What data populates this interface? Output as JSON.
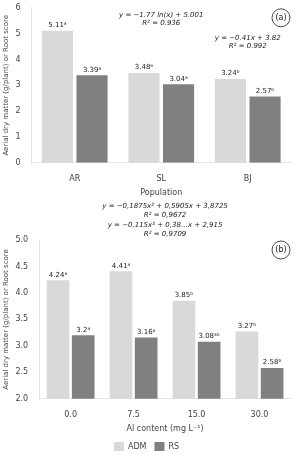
{
  "chart_data": [
    {
      "type": "bar",
      "categories": [
        "AR",
        "SL",
        "BJ"
      ],
      "series": [
        {
          "name": "ADM",
          "color": "#d9d9d9",
          "values": [
            5.11,
            3.48,
            3.24
          ],
          "value_labels": [
            "5.11ᵃ",
            "3.48ᵃ",
            "3.24ᵇ"
          ]
        },
        {
          "name": "RS",
          "color": "#808080",
          "values": [
            3.39,
            3.04,
            2.57
          ],
          "value_labels": [
            "3.39ᵃ",
            "3.04ᵃ",
            "2.57ᵇ"
          ]
        }
      ],
      "xlabel": "Population",
      "ylabel": "Aerial dry matter (g/plant) or Root score",
      "ylim": [
        0,
        6
      ],
      "yticks": [
        0,
        1,
        2,
        3,
        4,
        5,
        6
      ],
      "annotations": [
        "(a)",
        "y = −1.77 ln(x) + 5.001\nR² = 0.936",
        "y = −0.41x + 3.82\nR² = 0.992"
      ],
      "data_labels": true,
      "grid": false
    },
    {
      "type": "bar",
      "categories": [
        "0.0",
        "7.5",
        "15.0",
        "30.0"
      ],
      "series": [
        {
          "name": "ADM",
          "color": "#d9d9d9",
          "values": [
            4.24,
            4.41,
            3.85,
            3.27
          ],
          "value_labels": [
            "4.24ᵃ",
            "4.41ᵃ",
            "3.85ᵇ",
            "3.27ᵇ"
          ]
        },
        {
          "name": "RS",
          "color": "#808080",
          "values": [
            3.2,
            3.16,
            3.08,
            2.58
          ],
          "value_labels": [
            "3.2ᵃ",
            "3.16ᵃ",
            "3.08ᵃᵇ",
            "2.58ᵇ"
          ]
        }
      ],
      "xlabel": "Al content (mg L⁻¹)",
      "ylabel": "Aerial dry matter (g/plant) or Root score",
      "ylim": [
        2.0,
        5.0
      ],
      "yticks": [
        {
          "value": 2.0,
          "label": "2.0"
        },
        2.5,
        {
          "value": 3.0,
          "label": "3.0"
        },
        3.5,
        {
          "value": 4.0,
          "label": "4.0"
        },
        4.5,
        {
          "value": 5.0,
          "label": "5.0"
        }
      ],
      "annotations": [
        "(b)",
        "y = −0,1875x² + 0,5905x + 3,8725\nR² = 0,9672",
        "y = −0,115x² + 0,38…x + 2,915\nR² = 0,9709"
      ],
      "data_labels": true,
      "grid": false,
      "legend": "bottom"
    }
  ]
}
